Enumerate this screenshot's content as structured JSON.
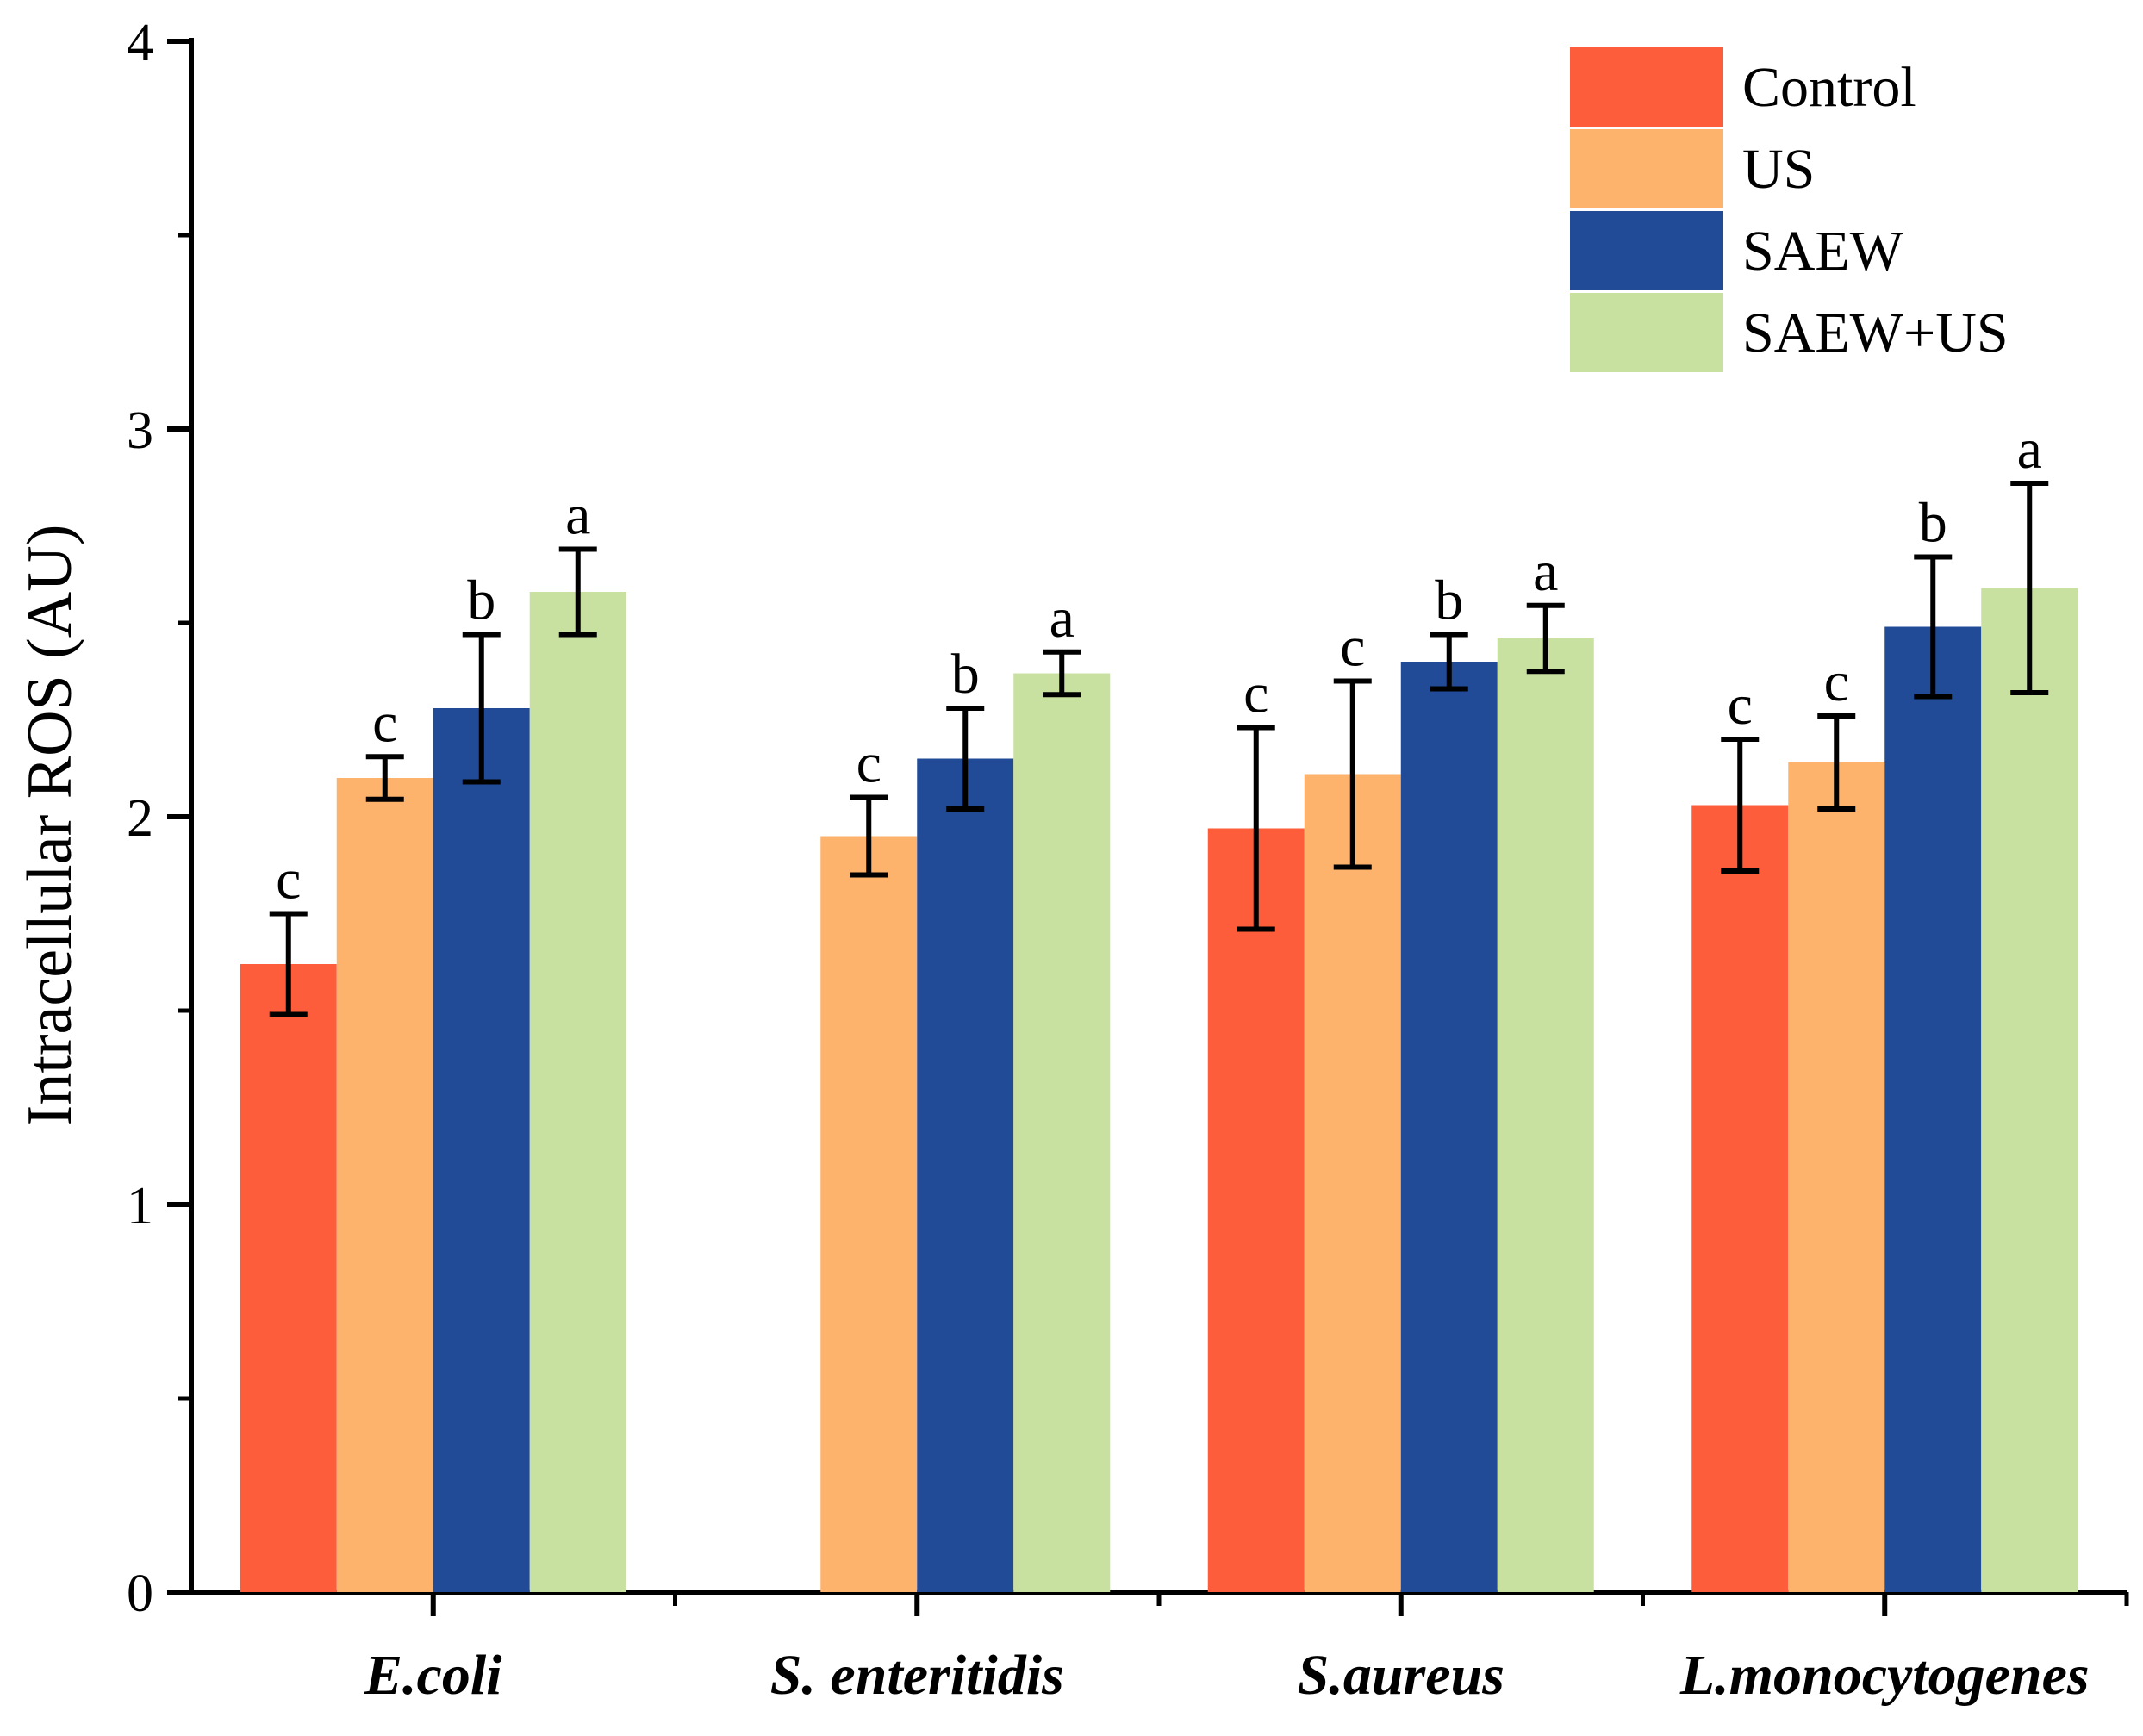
{
  "chart_data": {
    "type": "bar",
    "title": "",
    "xlabel": "",
    "ylabel": "Intracellular ROS (AU)",
    "ylim": [
      0,
      4
    ],
    "yticks": [
      "0",
      "1",
      "2",
      "3",
      "4"
    ],
    "grid": false,
    "legend_position": "top-right",
    "categories": [
      "E.coli",
      "S. enteritidis",
      "S.aureus",
      "L.monocytogenes"
    ],
    "series": [
      {
        "name": "Control",
        "color": "#fe5d3b",
        "values": [
          1.62,
          null,
          1.97,
          2.03
        ],
        "errors": [
          0.13,
          null,
          0.26,
          0.17
        ],
        "labels": [
          "c",
          "",
          "c",
          "c"
        ]
      },
      {
        "name": "US",
        "color": "#feb36c",
        "values": [
          2.1,
          1.95,
          2.11,
          2.14
        ],
        "errors": [
          0.055,
          0.1,
          0.24,
          0.12
        ],
        "labels": [
          "c",
          "c",
          "c",
          "c"
        ]
      },
      {
        "name": "SAEW",
        "color": "#224b97",
        "values": [
          2.28,
          2.15,
          2.4,
          2.49
        ],
        "errors": [
          0.19,
          0.13,
          0.07,
          0.18
        ],
        "labels": [
          "b",
          "b",
          "b",
          "b"
        ]
      },
      {
        "name": "SAEW+US",
        "color": "#c8e0a0",
        "values": [
          2.58,
          2.37,
          2.46,
          2.59
        ],
        "errors": [
          0.11,
          0.055,
          0.085,
          0.27
        ],
        "labels": [
          "a",
          "a",
          "a",
          "a"
        ]
      }
    ]
  }
}
